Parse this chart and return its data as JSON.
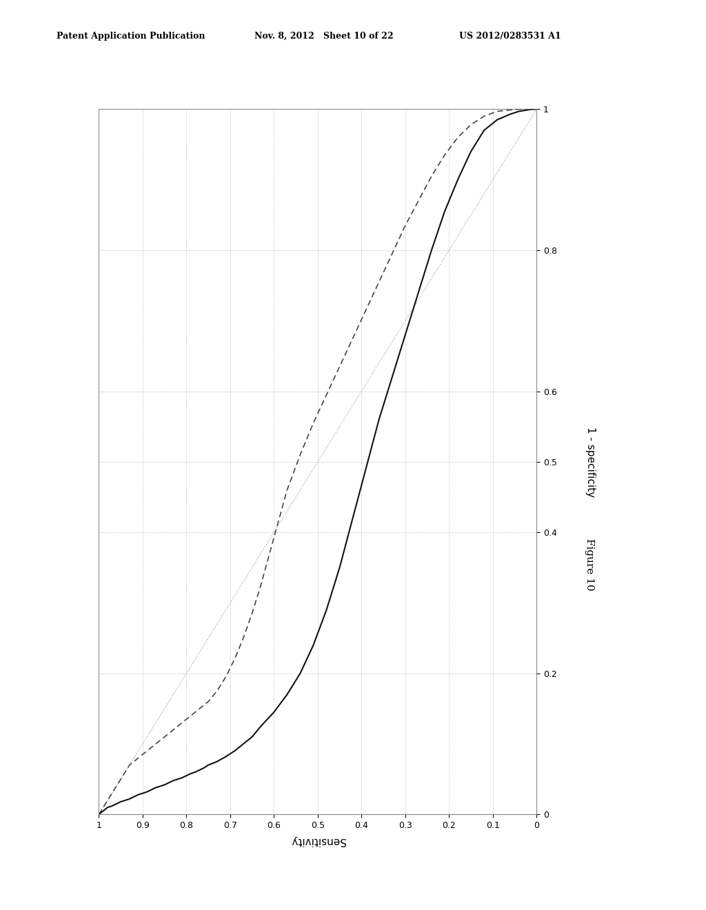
{
  "header_left": "Patent Application Publication",
  "header_mid": "Nov. 8, 2012   Sheet 10 of 22",
  "header_right": "US 2012/0283531 A1",
  "figure_label": "Figure 10",
  "xlabel": "Sensitivity",
  "ylabel": "1 - specificity",
  "background_color": "#ffffff",
  "plot_bg_color": "#ffffff",
  "grid_color": "#aaaaaa",
  "line_color_solid": "#111111",
  "line_color_dashed": "#444444",
  "line_color_diagonal": "#aaaaaa",
  "solid_roc_sens": [
    1.0,
    0.99,
    0.98,
    0.97,
    0.96,
    0.95,
    0.94,
    0.93,
    0.92,
    0.91,
    0.9,
    0.89,
    0.88,
    0.87,
    0.86,
    0.85,
    0.84,
    0.83,
    0.82,
    0.81,
    0.8,
    0.79,
    0.78,
    0.77,
    0.76,
    0.75,
    0.73,
    0.71,
    0.69,
    0.67,
    0.65,
    0.63,
    0.6,
    0.57,
    0.54,
    0.51,
    0.48,
    0.45,
    0.42,
    0.39,
    0.36,
    0.33,
    0.3,
    0.27,
    0.24,
    0.21,
    0.18,
    0.15,
    0.12,
    0.09,
    0.06,
    0.04,
    0.02,
    0.01,
    0.0
  ],
  "solid_roc_fpr": [
    0.0,
    0.005,
    0.01,
    0.012,
    0.015,
    0.018,
    0.02,
    0.022,
    0.025,
    0.028,
    0.03,
    0.032,
    0.035,
    0.038,
    0.04,
    0.042,
    0.045,
    0.048,
    0.05,
    0.052,
    0.055,
    0.058,
    0.06,
    0.063,
    0.066,
    0.07,
    0.075,
    0.082,
    0.09,
    0.1,
    0.11,
    0.125,
    0.145,
    0.17,
    0.2,
    0.24,
    0.29,
    0.35,
    0.42,
    0.49,
    0.56,
    0.62,
    0.68,
    0.74,
    0.8,
    0.855,
    0.9,
    0.94,
    0.97,
    0.985,
    0.993,
    0.997,
    0.999,
    1.0,
    1.0
  ],
  "dashed_roc_sens": [
    1.0,
    0.99,
    0.98,
    0.97,
    0.96,
    0.95,
    0.94,
    0.93,
    0.91,
    0.89,
    0.87,
    0.85,
    0.83,
    0.81,
    0.79,
    0.77,
    0.75,
    0.73,
    0.71,
    0.69,
    0.67,
    0.65,
    0.63,
    0.61,
    0.59,
    0.57,
    0.54,
    0.51,
    0.48,
    0.45,
    0.42,
    0.39,
    0.36,
    0.33,
    0.3,
    0.27,
    0.24,
    0.21,
    0.18,
    0.15,
    0.12,
    0.09,
    0.06,
    0.04,
    0.02,
    0.01,
    0.0
  ],
  "dashed_roc_fpr": [
    0.0,
    0.01,
    0.02,
    0.03,
    0.04,
    0.05,
    0.06,
    0.07,
    0.08,
    0.09,
    0.1,
    0.11,
    0.12,
    0.13,
    0.14,
    0.15,
    0.16,
    0.175,
    0.195,
    0.22,
    0.25,
    0.285,
    0.325,
    0.37,
    0.415,
    0.46,
    0.51,
    0.555,
    0.595,
    0.635,
    0.675,
    0.715,
    0.755,
    0.795,
    0.835,
    0.87,
    0.905,
    0.935,
    0.96,
    0.978,
    0.99,
    0.997,
    0.999,
    1.0,
    1.0,
    1.0,
    1.0
  ],
  "x_ticks": [
    1.0,
    0.9,
    0.8,
    0.7,
    0.6,
    0.5,
    0.4,
    0.3,
    0.2,
    0.1,
    0.0
  ],
  "y_ticks": [
    0.0,
    0.2,
    0.4,
    0.5,
    0.6,
    0.8,
    1.0
  ]
}
